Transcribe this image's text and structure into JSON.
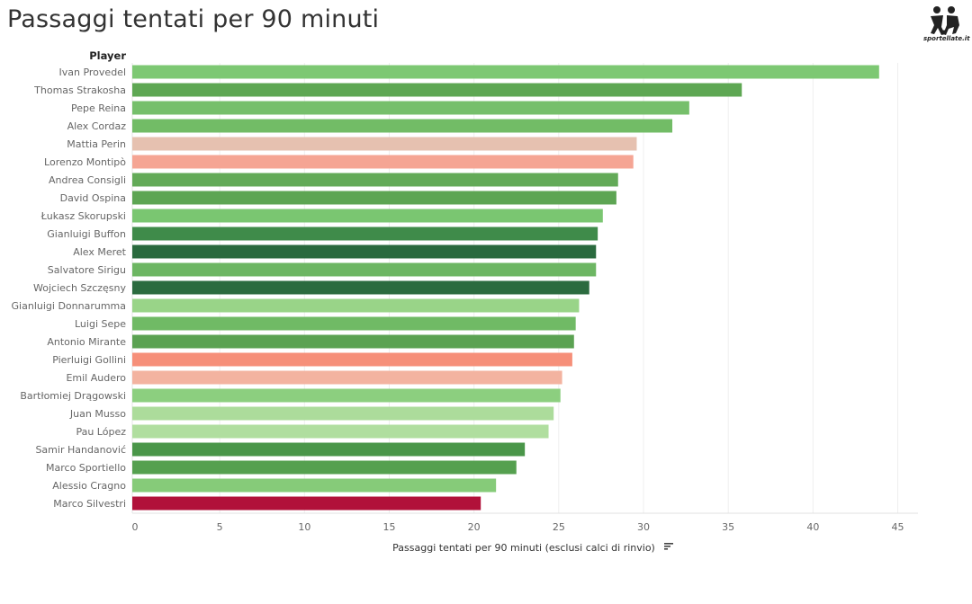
{
  "page": {
    "title": "Passaggi tentati per 90 minuti",
    "logo_text": "sportellate.it"
  },
  "chart_data": {
    "type": "bar",
    "orientation": "horizontal",
    "row_header": "Player",
    "xlabel": "Passaggi tentati per 90 minuti (esclusi calci di rinvio)",
    "xlim": [
      0,
      46
    ],
    "xticks": [
      0,
      5,
      10,
      15,
      20,
      25,
      30,
      35,
      40,
      45
    ],
    "grid": true,
    "sort_icon": "sort-descending-icon",
    "categories": [
      "Ivan Provedel",
      "Thomas Strakosha",
      "Pepe Reina",
      "Alex Cordaz",
      "Mattia Perin",
      "Lorenzo Montipò",
      "Andrea Consigli",
      "David Ospina",
      "Łukasz Skorupski",
      "Gianluigi Buffon",
      "Alex Meret",
      "Salvatore Sirigu",
      "Wojciech Szczęsny",
      "Gianluigi Donnarumma",
      "Luigi Sepe",
      "Antonio Mirante",
      "Pierluigi Gollini",
      "Emil Audero",
      "Bartłomiej Drągowski",
      "Juan Musso",
      "Pau López",
      "Samir Handanović",
      "Marco Sportiello",
      "Alessio Cragno",
      "Marco Silvestri"
    ],
    "values": [
      43.9,
      35.8,
      32.7,
      31.7,
      29.6,
      29.4,
      28.5,
      28.4,
      27.6,
      27.3,
      27.2,
      27.2,
      26.8,
      26.2,
      26.0,
      25.9,
      25.8,
      25.2,
      25.1,
      24.7,
      24.4,
      23.0,
      22.5,
      21.3,
      20.4
    ],
    "colors": [
      "#7dc873",
      "#5ea753",
      "#76bf6b",
      "#72bc66",
      "#e6c1b0",
      "#f5a594",
      "#63aa58",
      "#5da553",
      "#7ac671",
      "#3f8b4a",
      "#2a6a3e",
      "#6db663",
      "#2b6b3f",
      "#99d488",
      "#70ba65",
      "#5ba252",
      "#f68f79",
      "#f3b3a0",
      "#8ccf7f",
      "#acdc9b",
      "#b0de9f",
      "#4a9649",
      "#55a04f",
      "#86cb79",
      "#b1113a"
    ]
  }
}
